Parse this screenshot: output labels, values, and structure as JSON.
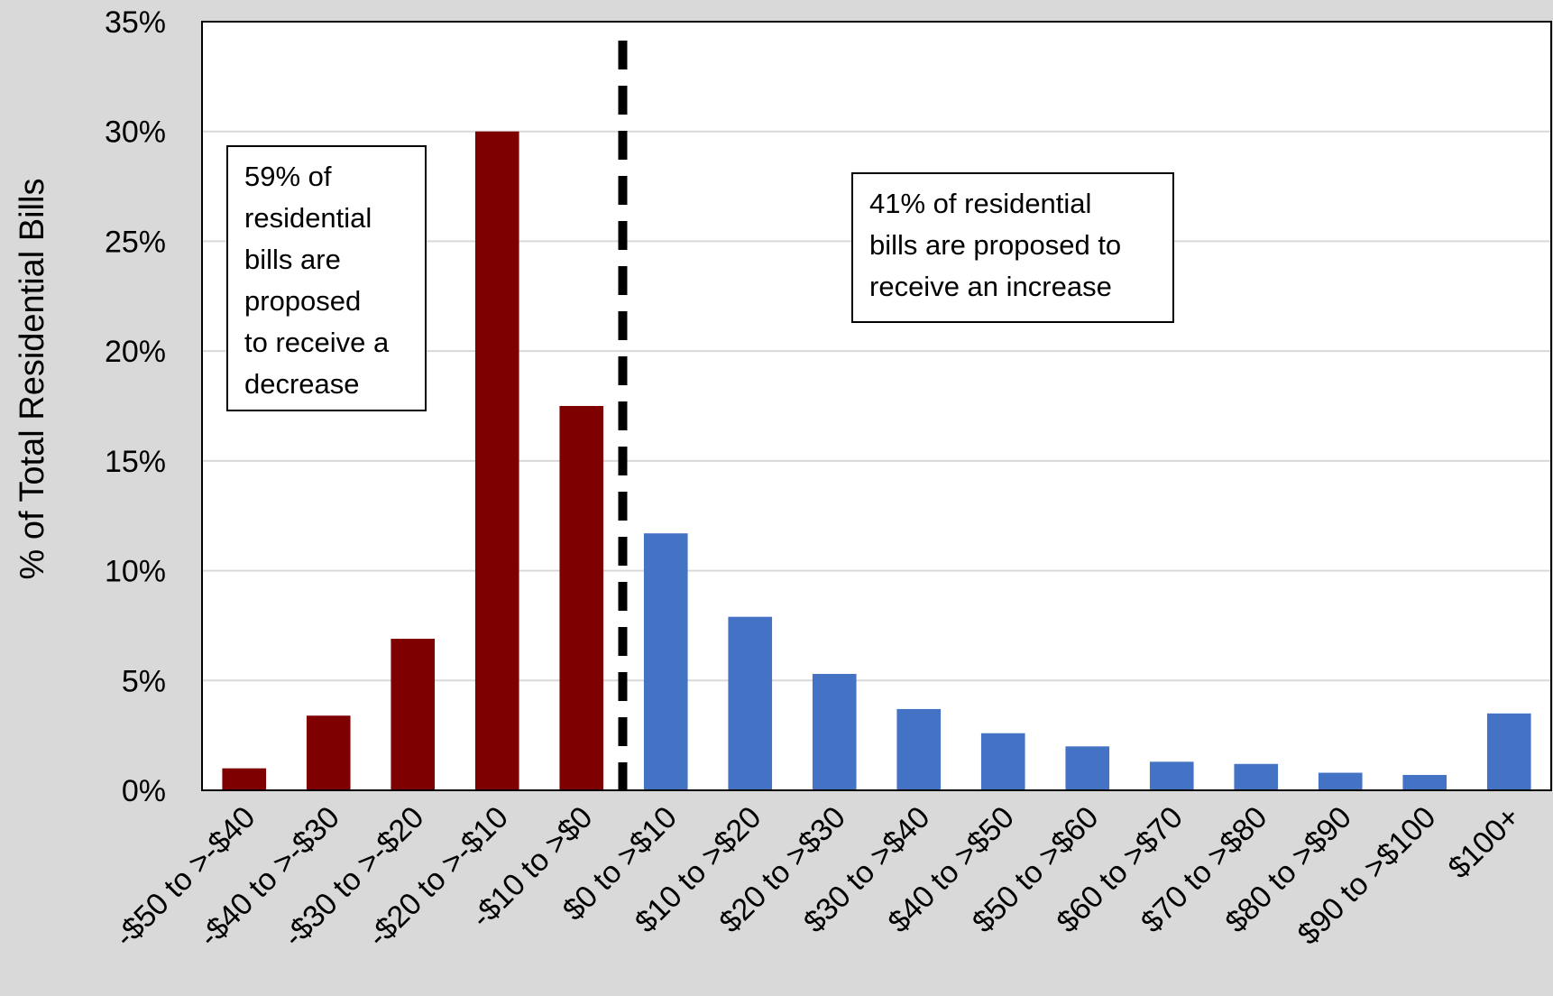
{
  "chart_data": {
    "type": "bar",
    "title": "",
    "xlabel": "",
    "ylabel": "% of Total Residential Bills",
    "ylim": [
      0,
      35
    ],
    "ytick_values": [
      0,
      5,
      10,
      15,
      20,
      25,
      30,
      35
    ],
    "ytick_labels": [
      "0%",
      "5%",
      "10%",
      "15%",
      "20%",
      "25%",
      "30%",
      "35%"
    ],
    "grid": true,
    "categories": [
      "-$50 to >-$40",
      "-$40 to >-$30",
      "-$30 to >-$20",
      "-$20 to >-$10",
      "-$10 to >$0",
      "$0 to >$10",
      "$10 to >$20",
      "$20 to >$30",
      "$30 to >$40",
      "$40 to >$50",
      "$50 to >$60",
      "$60 to >$70",
      "$70 to >$80",
      "$80 to >$90",
      "$90 to >$100",
      "$100+"
    ],
    "values": [
      1.0,
      3.4,
      6.9,
      30.0,
      17.5,
      11.7,
      7.9,
      5.3,
      3.7,
      2.6,
      2.0,
      1.3,
      1.2,
      0.8,
      0.7,
      3.5
    ],
    "bar_colors": [
      "#7f0000",
      "#7f0000",
      "#7f0000",
      "#7f0000",
      "#7f0000",
      "#4472c4",
      "#4472c4",
      "#4472c4",
      "#4472c4",
      "#4472c4",
      "#4472c4",
      "#4472c4",
      "#4472c4",
      "#4472c4",
      "#4472c4",
      "#4472c4"
    ],
    "divider": {
      "style": "dashed",
      "color": "#000000",
      "between": [
        "-$10 to >$0",
        "$0 to >$10"
      ]
    },
    "annotations": [
      {
        "lines": [
          "59% of",
          "residential",
          "bills are",
          "proposed",
          "to receive a",
          "decrease"
        ]
      },
      {
        "lines": [
          "41% of residential",
          "bills are proposed to",
          "receive an increase"
        ]
      }
    ]
  },
  "colors": {
    "background": "#d9d9d9",
    "plot_background": "#ffffff",
    "gridline": "#d9d9d9",
    "decrease": "#7f0000",
    "increase": "#4472c4"
  }
}
